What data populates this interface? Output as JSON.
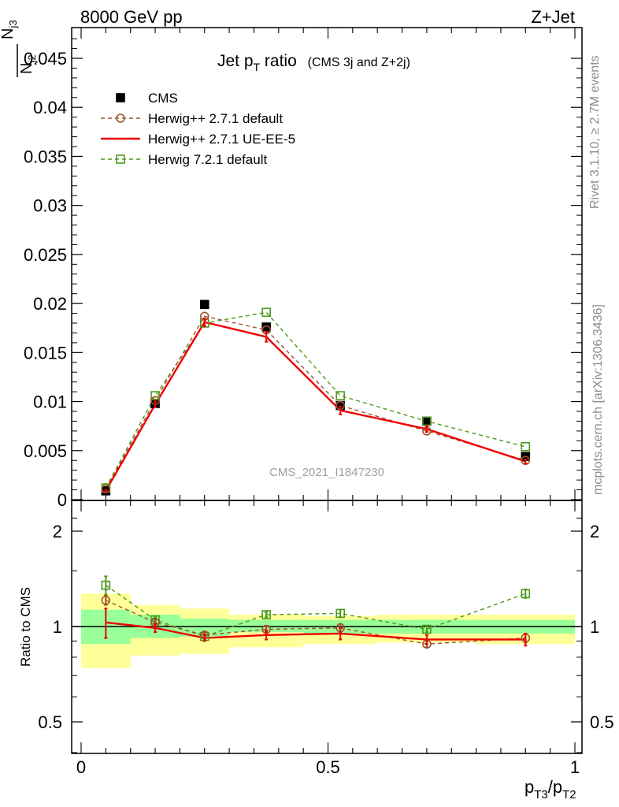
{
  "header": {
    "left": "8000 GeV pp",
    "right": "Z+Jet"
  },
  "side_text": {
    "rivet": "Rivet 3.1.10, ≥ 2.7M events",
    "mcplots": "mcplots.cern.ch [arXiv:1306.3436]"
  },
  "watermark": "CMS_2021_I1847230",
  "chart_data": [
    {
      "type": "line",
      "title_main": "Jet p",
      "title_sub": "T",
      "title_rest": " ratio",
      "title_small": "(CMS 3j and Z+2j)",
      "ylabel_top": "N",
      "ylabel_top_sub": "j3",
      "ylabel_bottom": "N",
      "ylabel_bottom_sub": "j2",
      "xlim": [
        0,
        1
      ],
      "ylim": [
        0,
        0.048
      ],
      "yticks": [
        "0",
        "0.005",
        "0.01",
        "0.015",
        "0.02",
        "0.025",
        "0.03",
        "0.035",
        "0.04",
        "0.045"
      ],
      "ytick_values": [
        0,
        0.005,
        0.01,
        0.015,
        0.02,
        0.025,
        0.03,
        0.035,
        0.04,
        0.045
      ],
      "legend_position": "top-left",
      "x": [
        0.05,
        0.15,
        0.25,
        0.375,
        0.525,
        0.7,
        0.9
      ],
      "series": [
        {
          "name": "CMS",
          "style": "square-marker",
          "color": "#000000",
          "values": [
            0.0009,
            0.0098,
            0.0199,
            0.0176,
            0.0096,
            0.008,
            0.0044
          ]
        },
        {
          "name": "Herwig++ 2.7.1 default",
          "style": "dashed-circle",
          "color": "#a0522d",
          "values": [
            0.0011,
            0.0101,
            0.0187,
            0.0173,
            0.0096,
            0.007,
            0.004
          ]
        },
        {
          "name": "Herwig++ 2.7.1 UE-EE-5",
          "style": "solid",
          "color": "#ee0000",
          "values": [
            0.0009,
            0.0097,
            0.0181,
            0.0166,
            0.0091,
            0.0072,
            0.0039
          ],
          "errors": [
            0.0001,
            0.0003,
            0.0004,
            0.0005,
            0.0004,
            0.0003,
            0.0002
          ]
        },
        {
          "name": "Herwig 7.2.1 default",
          "style": "dashed-square",
          "color": "#4c9a1c",
          "values": [
            0.0012,
            0.0106,
            0.018,
            0.0191,
            0.0106,
            0.008,
            0.0054
          ]
        }
      ]
    },
    {
      "type": "line",
      "ylabel": "Ratio to CMS",
      "xlabel_main": "p",
      "xlabel_sub1": "T3",
      "xlabel_mid": "/p",
      "xlabel_sub2": "T2",
      "xlim": [
        0,
        1
      ],
      "ylim": [
        0.35,
        2.3
      ],
      "yticks": [
        "0.5",
        "1",
        "2"
      ],
      "ytick_values": [
        0.5,
        1,
        2
      ],
      "xticks": [
        "0",
        "0.5",
        "1"
      ],
      "xtick_values": [
        0,
        0.5,
        1
      ],
      "bins": [
        0,
        0.1,
        0.2,
        0.3,
        0.45,
        0.6,
        0.8,
        1.0
      ],
      "band_green": [
        [
          0.88,
          1.13
        ],
        [
          0.92,
          1.09
        ],
        [
          0.93,
          1.06
        ],
        [
          0.96,
          1.05
        ],
        [
          0.95,
          1.05
        ],
        [
          0.95,
          1.05
        ],
        [
          0.95,
          1.05
        ]
      ],
      "band_yellow": [
        [
          0.74,
          1.27
        ],
        [
          0.81,
          1.17
        ],
        [
          0.82,
          1.14
        ],
        [
          0.86,
          1.09
        ],
        [
          0.88,
          1.08
        ],
        [
          0.89,
          1.09
        ],
        [
          0.88,
          1.09
        ]
      ],
      "x": [
        0.05,
        0.15,
        0.25,
        0.375,
        0.525,
        0.7,
        0.9
      ],
      "series": [
        {
          "name": "Herwig++ 2.7.1 default",
          "color": "#a0522d",
          "values": [
            1.21,
            1.03,
            0.94,
            0.98,
            0.99,
            0.88,
            0.92
          ],
          "errors": [
            0.04,
            0.02,
            0.02,
            0.02,
            0.03,
            0.02,
            0.03
          ]
        },
        {
          "name": "Herwig++ 2.7.1 UE-EE-5",
          "color": "#ee0000",
          "values": [
            1.03,
            0.99,
            0.92,
            0.94,
            0.95,
            0.91,
            0.91
          ],
          "errors": [
            0.11,
            0.03,
            0.02,
            0.03,
            0.04,
            0.03,
            0.04
          ]
        },
        {
          "name": "Herwig 7.2.1 default",
          "color": "#4c9a1c",
          "values": [
            1.35,
            1.05,
            0.93,
            1.09,
            1.1,
            0.98,
            1.27
          ],
          "errors": [
            0.09,
            0.02,
            0.02,
            0.02,
            0.03,
            0.02,
            0.04
          ]
        }
      ]
    }
  ]
}
